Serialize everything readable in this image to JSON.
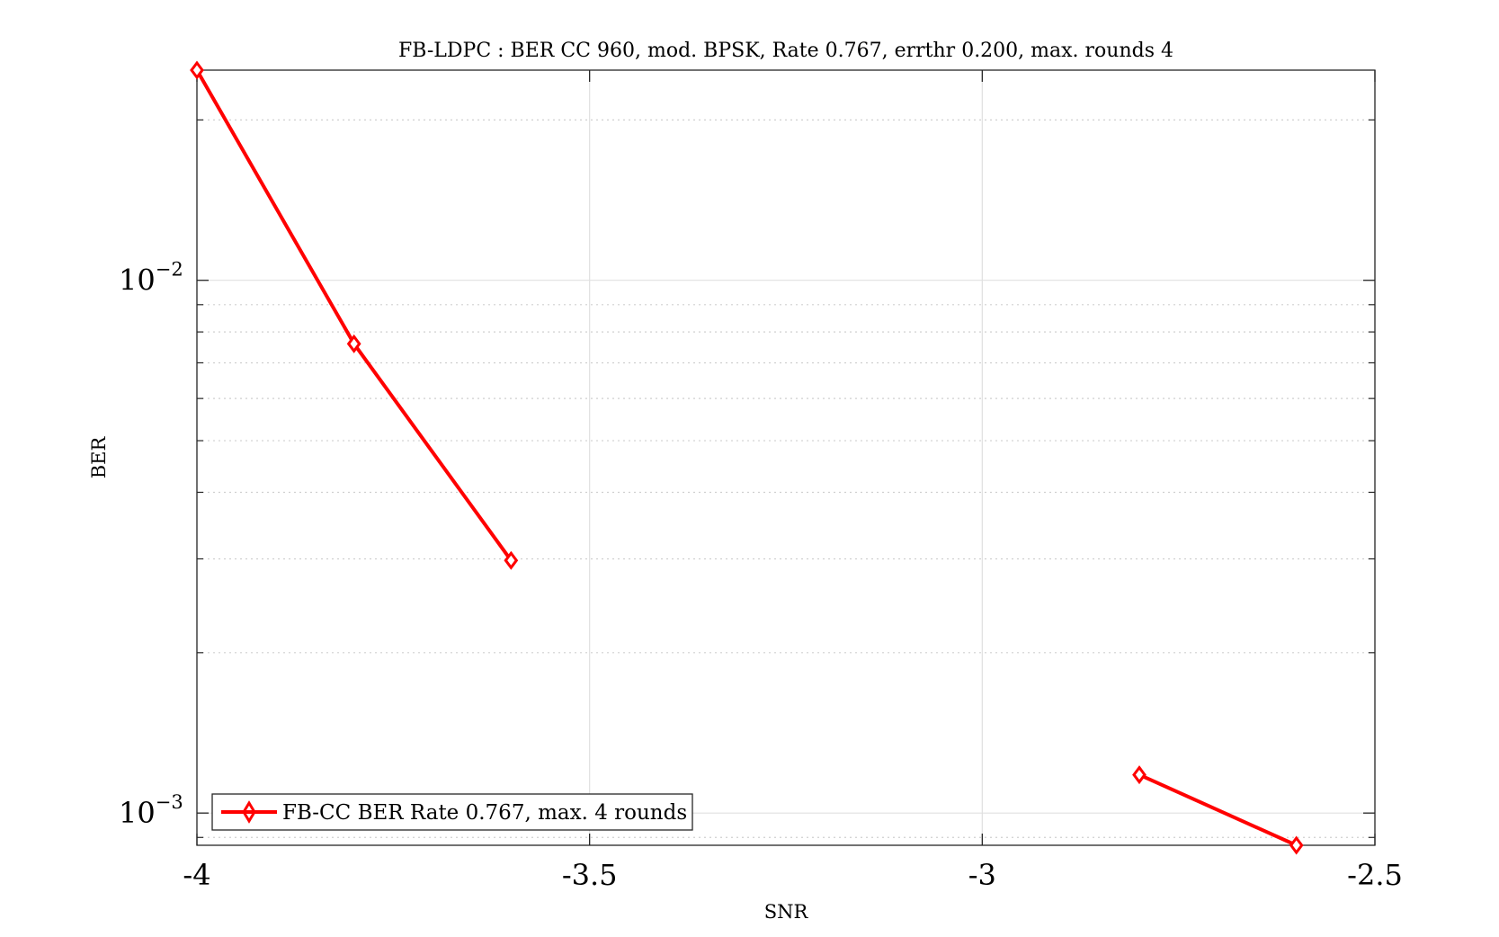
{
  "figure": {
    "title": "FB-LDPC : BER CC 960, mod. BPSK, Rate 0.767, errthr 0.200, max. rounds 4"
  },
  "chart_data": {
    "type": "line",
    "title": "FB-LDPC : BER CC 960, mod. BPSK, Rate 0.767, errthr 0.200, max. rounds 4",
    "xlabel": "SNR",
    "ylabel": "BER",
    "xlim": [
      -4,
      -2.5
    ],
    "ylim": [
      0.00087,
      0.0248
    ],
    "y_scale": "log",
    "grid": true,
    "legend_position": "bottom-left",
    "x_ticks": [
      {
        "value": -4,
        "label": "-4"
      },
      {
        "value": -3.5,
        "label": "-3.5"
      },
      {
        "value": -3,
        "label": "-3"
      },
      {
        "value": -2.5,
        "label": "-2.5"
      }
    ],
    "y_ticks": [
      {
        "value": 0.001,
        "base": "10",
        "exp": "−3"
      },
      {
        "value": 0.01,
        "base": "10",
        "exp": "−2"
      }
    ],
    "y_minor_ticks": [
      0.0009,
      0.002,
      0.003,
      0.004,
      0.005,
      0.006,
      0.007,
      0.008,
      0.009,
      0.02
    ],
    "series": [
      {
        "name": "FB-CC BER Rate 0.767, max. 4 rounds",
        "color": "#ff0000",
        "marker": "diamond",
        "segments": [
          [
            {
              "x": -4.0,
              "y": 0.0248
            },
            {
              "x": -3.8,
              "y": 0.0076
            },
            {
              "x": -3.6,
              "y": 0.00298
            }
          ],
          [
            {
              "x": -2.8,
              "y": 0.00118
            },
            {
              "x": -2.6,
              "y": 0.00087
            }
          ]
        ]
      }
    ]
  }
}
